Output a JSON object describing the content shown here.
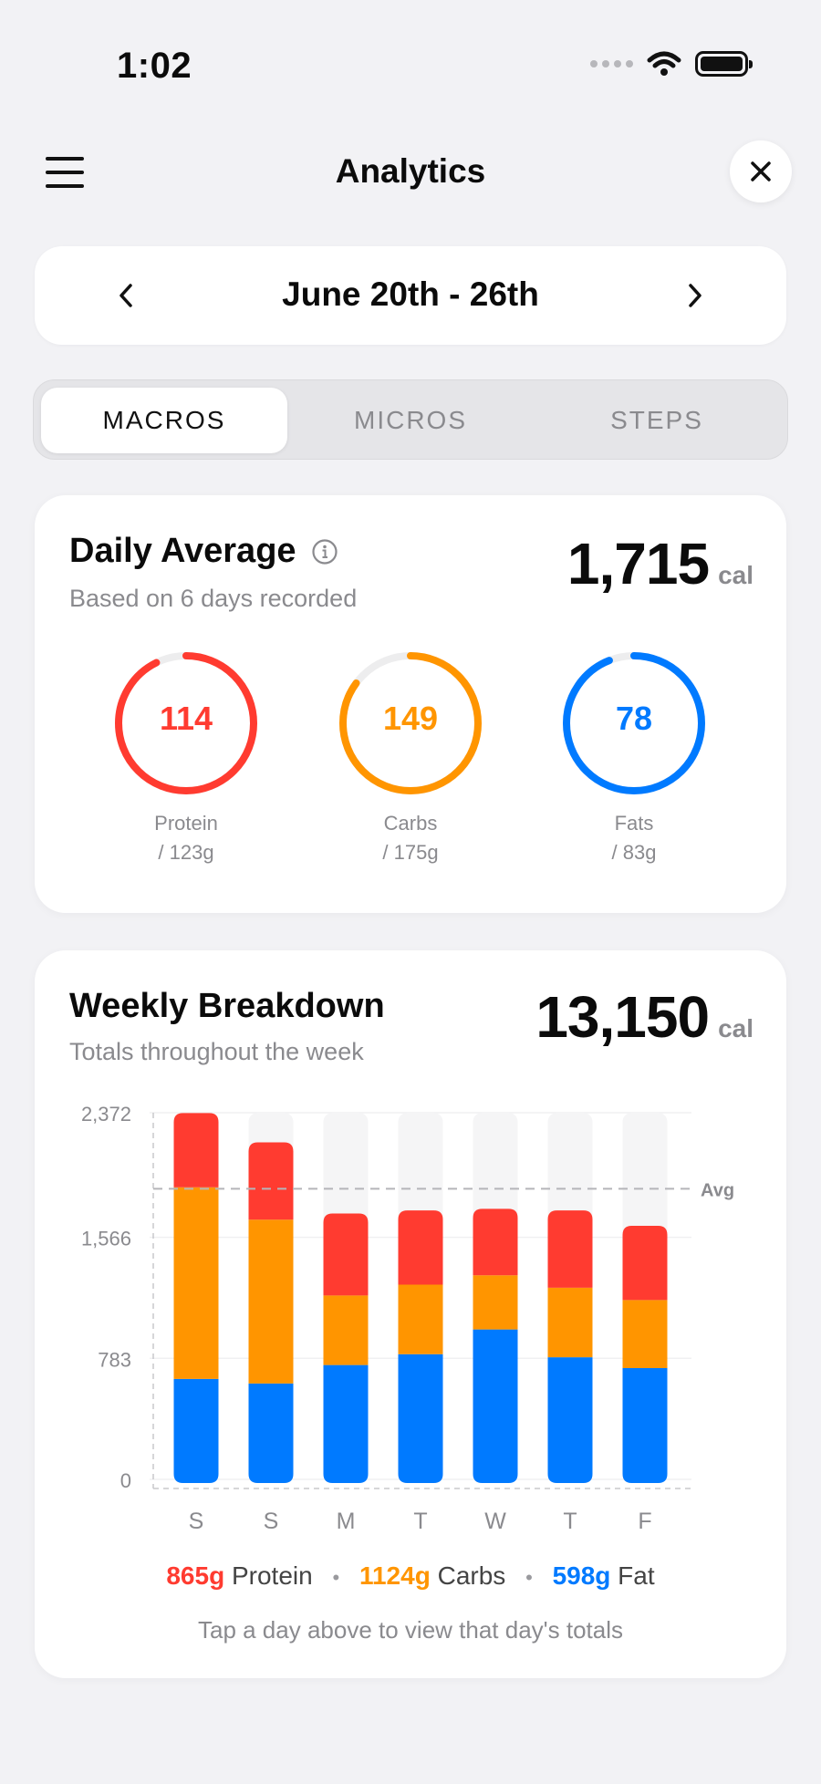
{
  "status_bar": {
    "time": "1:02"
  },
  "nav": {
    "title": "Analytics"
  },
  "date_range": {
    "label": "June 20th - 26th",
    "prev_icon": "chevron-left-icon",
    "next_icon": "chevron-right-icon"
  },
  "tabs": [
    {
      "label": "MACROS",
      "active": true
    },
    {
      "label": "MICROS",
      "active": false
    },
    {
      "label": "STEPS",
      "active": false
    }
  ],
  "daily_average": {
    "title": "Daily Average",
    "subtitle": "Based on 6 days recorded",
    "calories": "1,715",
    "unit": "cal",
    "macros": [
      {
        "value": "114",
        "name": "Protein",
        "goal": "/ 123g",
        "color": "#ff3b30",
        "progress": 0.927
      },
      {
        "value": "149",
        "name": "Carbs",
        "goal": "/ 175g",
        "color": "#ff9500",
        "progress": 0.851
      },
      {
        "value": "78",
        "name": "Fats",
        "goal": "/ 83g",
        "color": "#007aff",
        "progress": 0.94
      }
    ]
  },
  "weekly": {
    "title": "Weekly Breakdown",
    "subtitle": "Totals throughout the week",
    "calories": "13,150",
    "unit": "cal",
    "legend": {
      "protein_value": "865g",
      "protein_label": "Protein",
      "carbs_value": "1124g",
      "carbs_label": "Carbs",
      "fat_value": "598g",
      "fat_label": "Fat"
    },
    "hint": "Tap a day above to view that day's totals"
  },
  "chart_data": {
    "type": "bar",
    "stacked": true,
    "categories": [
      "S",
      "S",
      "M",
      "T",
      "W",
      "T",
      "F"
    ],
    "y_ticks": [
      "2,372",
      "1,566",
      "783",
      "0"
    ],
    "ylim": [
      0,
      2372
    ],
    "average_label": "Avg",
    "average_value": 1880,
    "series": [
      {
        "name": "Fat",
        "color": "#007aff",
        "values": [
          650,
          620,
          740,
          810,
          970,
          790,
          720
        ]
      },
      {
        "name": "Carbs",
        "color": "#ff9500",
        "values": [
          1240,
          1060,
          450,
          450,
          350,
          450,
          440
        ]
      },
      {
        "name": "Protein",
        "color": "#ff3b30",
        "values": [
          480,
          500,
          530,
          480,
          430,
          500,
          480
        ]
      }
    ]
  }
}
